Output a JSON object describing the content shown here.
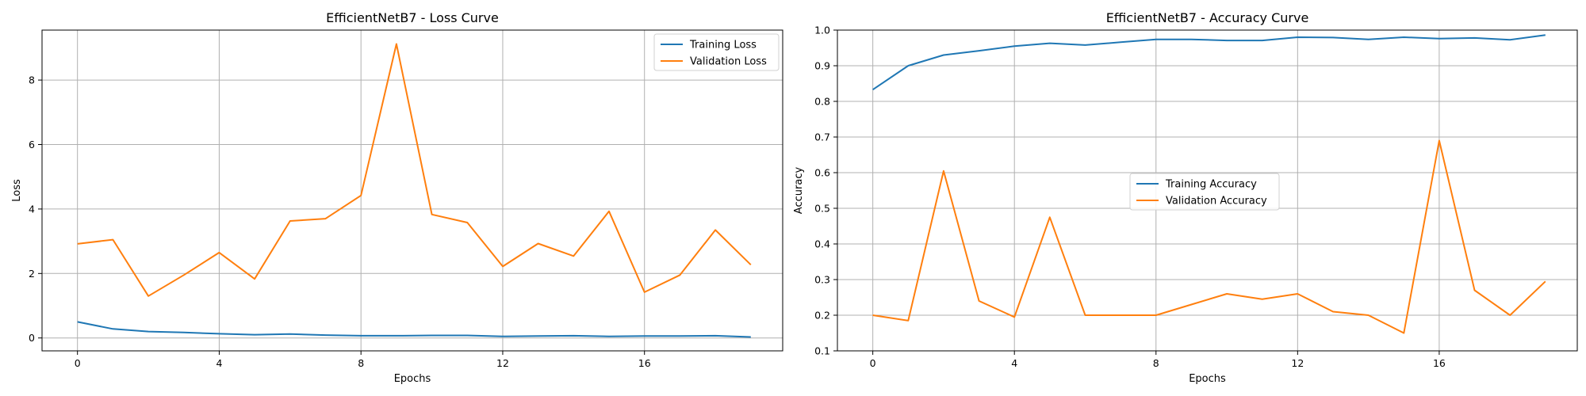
{
  "chart_data": [
    {
      "type": "line",
      "title": "EfficientNetB7 - Loss Curve",
      "xlabel": "Epochs",
      "ylabel": "Loss",
      "grid": true,
      "legend_position": "top-right",
      "x": [
        0,
        1,
        2,
        3,
        4,
        5,
        6,
        7,
        8,
        9,
        10,
        11,
        12,
        13,
        14,
        15,
        16,
        17,
        18,
        19
      ],
      "xlim": [
        -1,
        19.9
      ],
      "ylim": [
        -0.4,
        9.55
      ],
      "xticks": [
        0,
        4,
        8,
        12,
        16
      ],
      "yticks": [
        0,
        2,
        4,
        6,
        8
      ],
      "series": [
        {
          "name": "Training Loss",
          "color": "#1f77b4",
          "values": [
            0.5,
            0.28,
            0.2,
            0.17,
            0.13,
            0.1,
            0.12,
            0.09,
            0.07,
            0.07,
            0.08,
            0.08,
            0.05,
            0.06,
            0.07,
            0.05,
            0.06,
            0.06,
            0.07,
            0.03
          ]
        },
        {
          "name": "Validation Loss",
          "color": "#ff7f0e",
          "values": [
            2.92,
            3.05,
            1.3,
            1.95,
            2.65,
            1.83,
            3.63,
            3.7,
            4.42,
            9.12,
            3.83,
            3.58,
            2.22,
            2.93,
            2.54,
            3.93,
            1.42,
            1.95,
            3.35,
            2.27
          ]
        }
      ]
    },
    {
      "type": "line",
      "title": "EfficientNetB7 - Accuracy Curve",
      "xlabel": "Epochs",
      "ylabel": "Accuracy",
      "grid": true,
      "legend_position": "center",
      "x": [
        0,
        1,
        2,
        3,
        4,
        5,
        6,
        7,
        8,
        9,
        10,
        11,
        12,
        13,
        14,
        15,
        16,
        17,
        18,
        19
      ],
      "xlim": [
        -1,
        19.9
      ],
      "ylim": [
        0.1,
        1.0
      ],
      "xticks": [
        0,
        4,
        8,
        12,
        16
      ],
      "yticks": [
        0.1,
        0.2,
        0.3,
        0.4,
        0.5,
        0.6,
        0.7,
        0.8,
        0.9,
        1.0
      ],
      "series": [
        {
          "name": "Training Accuracy",
          "color": "#1f77b4",
          "values": [
            0.833,
            0.9,
            0.93,
            0.942,
            0.955,
            0.963,
            0.958,
            0.966,
            0.974,
            0.974,
            0.971,
            0.971,
            0.98,
            0.979,
            0.974,
            0.98,
            0.976,
            0.978,
            0.973,
            0.986
          ]
        },
        {
          "name": "Validation Accuracy",
          "color": "#ff7f0e",
          "values": [
            0.2,
            0.185,
            0.605,
            0.24,
            0.195,
            0.475,
            0.2,
            0.2,
            0.2,
            0.23,
            0.26,
            0.245,
            0.26,
            0.21,
            0.2,
            0.15,
            0.69,
            0.27,
            0.2,
            0.295
          ]
        }
      ]
    }
  ]
}
